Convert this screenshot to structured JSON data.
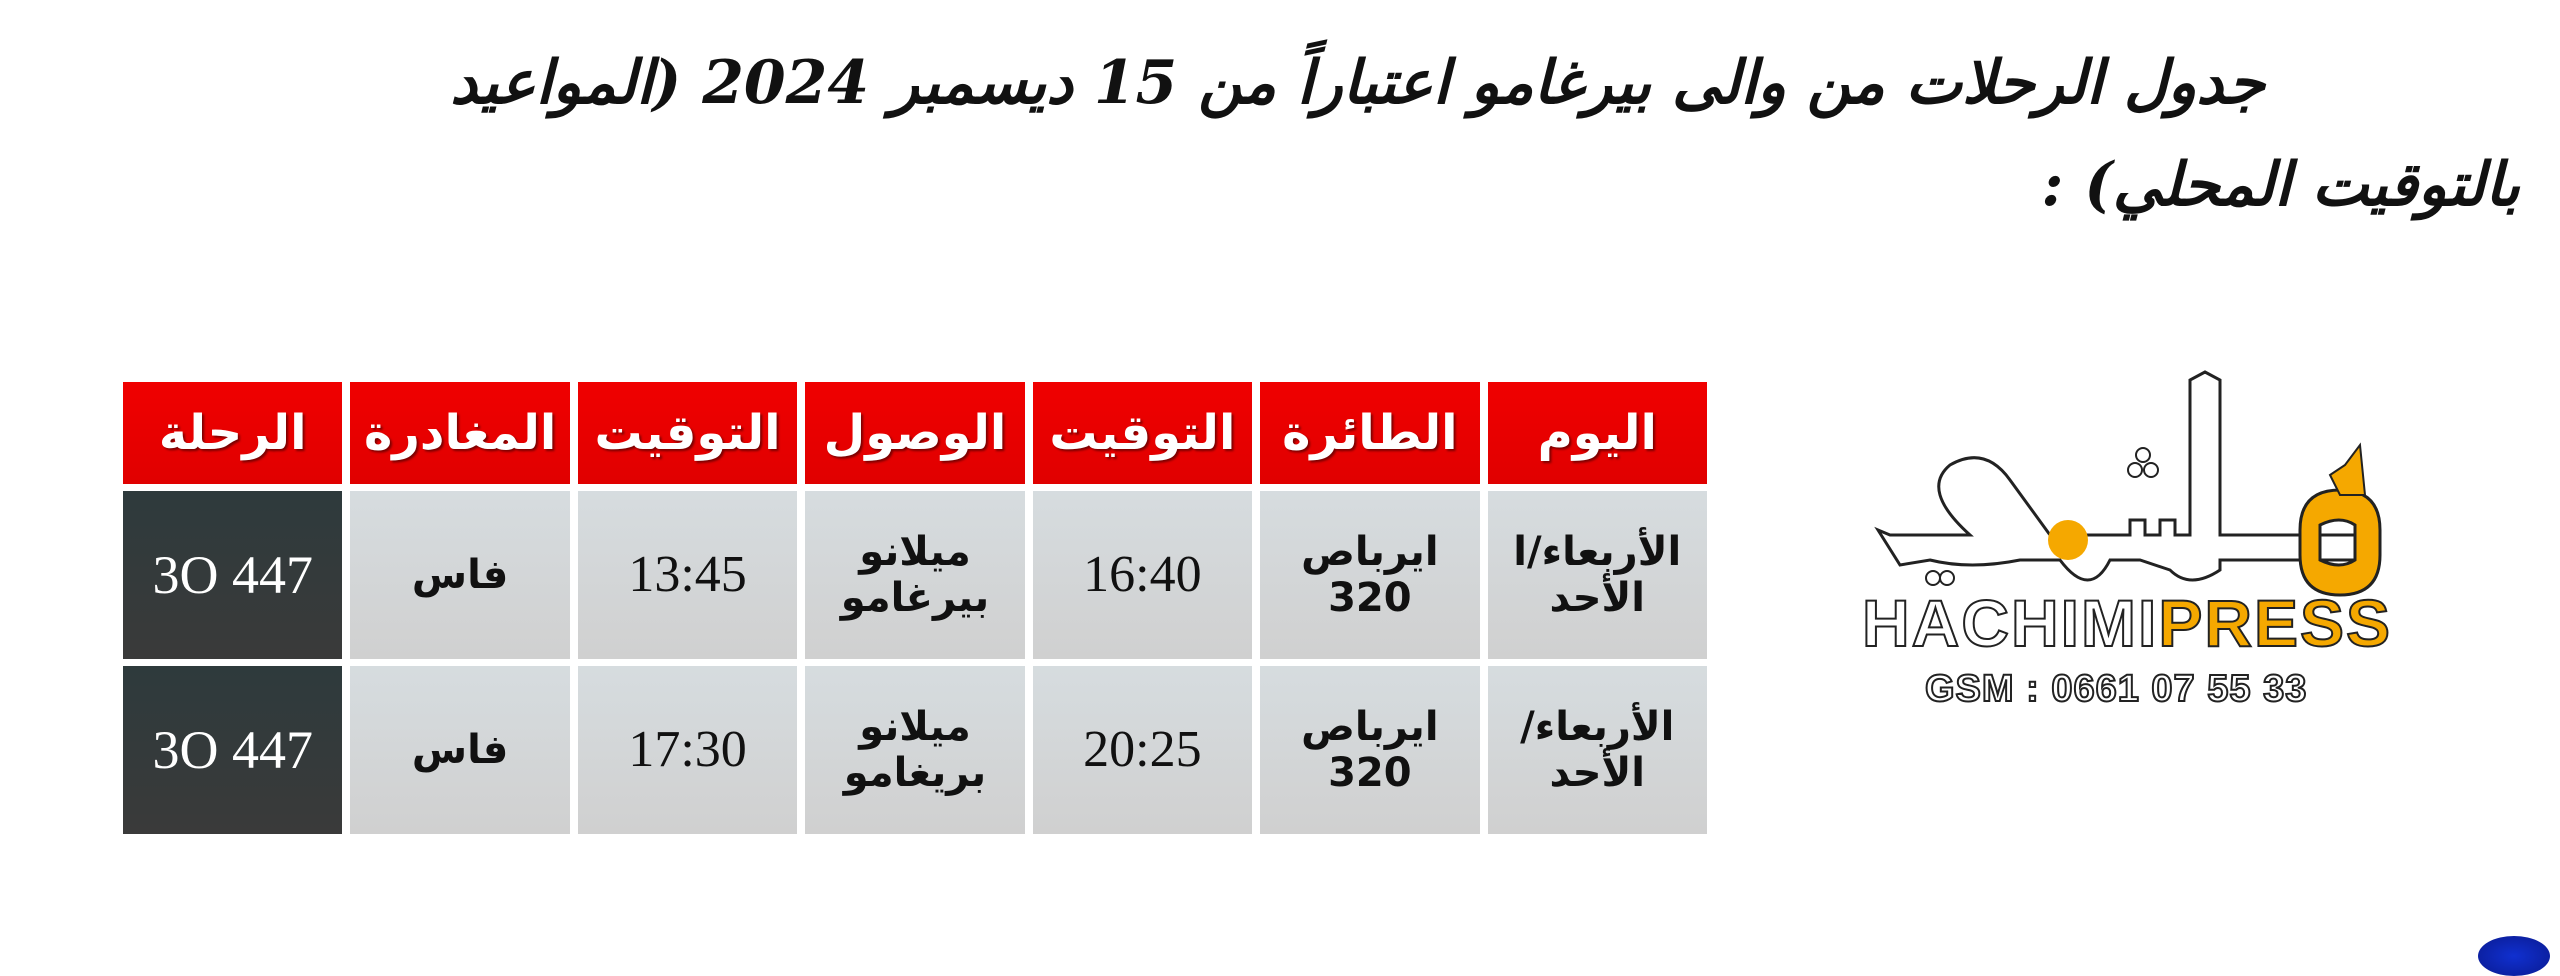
{
  "title": {
    "line1": "جدول الرحلات من والى بيرغامو اعتباراً من 15 ديسمبر 2024 (المواعيد",
    "line2": "بالتوقيت المحلي) :"
  },
  "table": {
    "headers": [
      "الرحلة",
      "المغادرة",
      "التوقيت",
      "الوصول",
      "التوقيت",
      "الطائرة",
      "اليوم"
    ],
    "rows": [
      {
        "flight": "3O 447",
        "departure": "فاس",
        "dep_time": "13:45",
        "arrival_l1": "ميلانو",
        "arrival_l2": "بيرغامو",
        "arr_time": "16:40",
        "aircraft": "ايرباص 320",
        "days": "الأربعاء/ا الأحد"
      },
      {
        "flight": "3O 447",
        "departure": "فاس",
        "dep_time": "17:30",
        "arrival_l1": "ميلانو",
        "arrival_l2": "بريغامو",
        "arr_time": "20:25",
        "aircraft": "ايرباص 320",
        "days": "الأربعاء/ الأحد"
      }
    ],
    "colors": {
      "header": "#e80000",
      "flight_cell": "#333b3d",
      "cell": "#d3d7d9"
    }
  },
  "logo": {
    "arabic": "هاشمي",
    "brand_part1": "HACHIMI",
    "brand_part2": "PRESS",
    "gsm": "GSM : 0661 07 55 33",
    "accent": "#f5a800"
  }
}
